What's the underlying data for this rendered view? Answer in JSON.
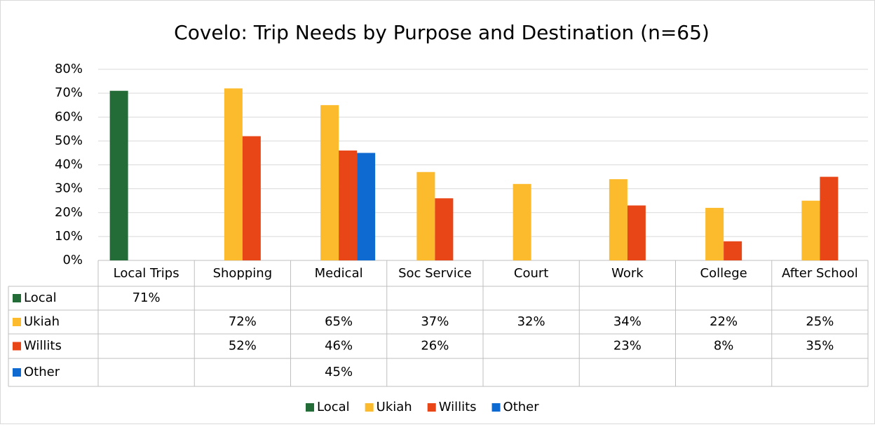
{
  "chart_data": {
    "type": "bar",
    "title": "Covelo: Trip Needs by Purpose and Destination (n=65)",
    "categories": [
      "Local Trips",
      "Shopping",
      "Medical",
      "Soc Service",
      "Court",
      "Work",
      "College",
      "After School"
    ],
    "series": [
      {
        "name": "Local",
        "color": "#236b37",
        "values": [
          71,
          null,
          null,
          null,
          null,
          null,
          null,
          null
        ],
        "value_labels": [
          "71%",
          null,
          null,
          null,
          null,
          null,
          null,
          null
        ]
      },
      {
        "name": "Ukiah",
        "color": "#fcbb2c",
        "values": [
          null,
          72,
          65,
          37,
          32,
          34,
          22,
          25
        ],
        "value_labels": [
          null,
          "72%",
          "65%",
          "37%",
          "32%",
          "34%",
          "22%",
          "25%"
        ]
      },
      {
        "name": "Willits",
        "color": "#e94618",
        "values": [
          null,
          52,
          46,
          26,
          null,
          23,
          8,
          35
        ],
        "value_labels": [
          null,
          "52%",
          "46%",
          "26%",
          null,
          "23%",
          "8%",
          "35%"
        ]
      },
      {
        "name": "Other",
        "color": "#0e69d0",
        "values": [
          null,
          null,
          45,
          null,
          null,
          null,
          null,
          null
        ],
        "value_labels": [
          null,
          null,
          "45%",
          null,
          null,
          null,
          null,
          null
        ]
      }
    ],
    "ylim": [
      0,
      80
    ],
    "yticks": [
      {
        "value": 0,
        "label": "0%"
      },
      {
        "value": 10,
        "label": "10%"
      },
      {
        "value": 20,
        "label": "20%"
      },
      {
        "value": 30,
        "label": "30%"
      },
      {
        "value": 40,
        "label": "40%"
      },
      {
        "value": 50,
        "label": "50%"
      },
      {
        "value": 60,
        "label": "60%"
      },
      {
        "value": 70,
        "label": "70%"
      },
      {
        "value": 80,
        "label": "80%"
      }
    ],
    "grid": true,
    "legend": "bottom"
  }
}
